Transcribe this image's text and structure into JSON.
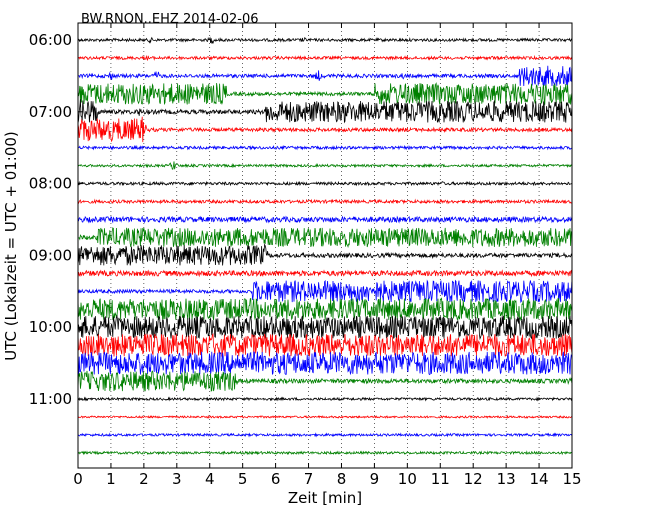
{
  "chart_data": {
    "type": "line",
    "title": "BW.RNON..EHZ 2014-02-06",
    "xlabel": "Zeit  [min]",
    "ylabel": "UTC (Lokalzeit = UTC + 01:00)",
    "xlim": [
      0,
      15
    ],
    "x_ticks": [
      "0",
      "1",
      "2",
      "3",
      "4",
      "5",
      "6",
      "7",
      "8",
      "9",
      "10",
      "11",
      "12",
      "13",
      "14",
      "15"
    ],
    "y_ticks": [
      "06:00",
      "07:00",
      "08:00",
      "09:00",
      "10:00",
      "11:00"
    ],
    "grid": "vertical dotted",
    "colors": [
      "#000000",
      "#ff0000",
      "#0000ff",
      "#008000"
    ],
    "rows": [
      {
        "start": "06:00",
        "segments": [
          {
            "from": 0,
            "to": 15,
            "amp": 0.12
          }
        ],
        "events": [
          {
            "at": 2.2,
            "amp": 0.25
          },
          {
            "at": 4.05,
            "amp": 0.35
          },
          {
            "at": 6.85,
            "amp": 0.25
          }
        ]
      },
      {
        "start": "06:15",
        "segments": [
          {
            "from": 0,
            "to": 15,
            "amp": 0.12
          }
        ],
        "events": [
          {
            "at": 2.15,
            "amp": 0.25
          },
          {
            "at": 12.6,
            "amp": 0.2
          }
        ]
      },
      {
        "start": "06:30",
        "segments": [
          {
            "from": 0,
            "to": 13.4,
            "amp": 0.15
          },
          {
            "from": 13.4,
            "to": 15,
            "amp": 0.85
          }
        ],
        "events": [
          {
            "at": 1.0,
            "amp": 0.4
          },
          {
            "at": 2.4,
            "amp": 0.45
          },
          {
            "at": 7.3,
            "amp": 0.5
          },
          {
            "at": 9.85,
            "amp": 0.3
          }
        ]
      },
      {
        "start": "06:45",
        "segments": [
          {
            "from": 0,
            "to": 4.5,
            "amp": 0.9
          },
          {
            "from": 4.5,
            "to": 9.0,
            "amp": 0.15
          },
          {
            "from": 9.0,
            "to": 15,
            "amp": 0.9
          }
        ],
        "events": []
      },
      {
        "start": "07:00",
        "segments": [
          {
            "from": 0,
            "to": 0.6,
            "amp": 1.05
          },
          {
            "from": 0.6,
            "to": 5.7,
            "amp": 0.18
          },
          {
            "from": 5.7,
            "to": 15,
            "amp": 0.9
          }
        ],
        "events": [
          {
            "at": 1.85,
            "amp": 0.4
          }
        ]
      },
      {
        "start": "07:15",
        "segments": [
          {
            "from": 0,
            "to": 1.9,
            "amp": 0.95
          },
          {
            "from": 1.9,
            "to": 15,
            "amp": 0.15
          }
        ],
        "events": [
          {
            "at": 1.95,
            "amp": 1.2
          }
        ]
      },
      {
        "start": "07:30",
        "segments": [
          {
            "from": 0,
            "to": 15,
            "amp": 0.12
          }
        ],
        "events": []
      },
      {
        "start": "07:45",
        "segments": [
          {
            "from": 0,
            "to": 15,
            "amp": 0.1
          }
        ],
        "events": [
          {
            "at": 2.9,
            "amp": 0.5
          }
        ]
      },
      {
        "start": "08:00",
        "segments": [
          {
            "from": 0,
            "to": 15,
            "amp": 0.12
          }
        ],
        "events": [
          {
            "at": 11.05,
            "amp": 0.2
          }
        ]
      },
      {
        "start": "08:15",
        "segments": [
          {
            "from": 0,
            "to": 15,
            "amp": 0.13
          }
        ],
        "events": []
      },
      {
        "start": "08:30",
        "segments": [
          {
            "from": 0,
            "to": 15,
            "amp": 0.22
          }
        ],
        "events": []
      },
      {
        "start": "08:45",
        "segments": [
          {
            "from": 0,
            "to": 0.6,
            "amp": 0.2
          },
          {
            "from": 0.6,
            "to": 15,
            "amp": 0.8
          }
        ],
        "events": []
      },
      {
        "start": "09:00",
        "segments": [
          {
            "from": 0,
            "to": 5.7,
            "amp": 0.85
          },
          {
            "from": 5.7,
            "to": 15,
            "amp": 0.18
          }
        ],
        "events": [
          {
            "at": 5.65,
            "amp": 1.0
          }
        ]
      },
      {
        "start": "09:15",
        "segments": [
          {
            "from": 0,
            "to": 15,
            "amp": 0.22
          }
        ],
        "events": []
      },
      {
        "start": "09:30",
        "segments": [
          {
            "from": 0,
            "to": 5.3,
            "amp": 0.15
          },
          {
            "from": 5.3,
            "to": 15,
            "amp": 0.9
          }
        ],
        "events": []
      },
      {
        "start": "09:45",
        "segments": [
          {
            "from": 0,
            "to": 15,
            "amp": 0.9
          }
        ],
        "events": []
      },
      {
        "start": "10:00",
        "segments": [
          {
            "from": 0,
            "to": 15,
            "amp": 0.95
          }
        ],
        "events": []
      },
      {
        "start": "10:15",
        "segments": [
          {
            "from": 0,
            "to": 15,
            "amp": 0.95
          }
        ],
        "events": []
      },
      {
        "start": "10:30",
        "segments": [
          {
            "from": 0,
            "to": 15,
            "amp": 0.95
          }
        ],
        "events": []
      },
      {
        "start": "10:45",
        "segments": [
          {
            "from": 0,
            "to": 4.8,
            "amp": 0.85
          },
          {
            "from": 4.8,
            "to": 15,
            "amp": 0.18
          }
        ],
        "events": [
          {
            "at": 4.7,
            "amp": 1.1
          },
          {
            "at": 14.9,
            "amp": 0.3
          }
        ]
      },
      {
        "start": "11:00",
        "segments": [
          {
            "from": 0,
            "to": 15,
            "amp": 0.1
          }
        ],
        "events": []
      },
      {
        "start": "11:15",
        "segments": [
          {
            "from": 0,
            "to": 15,
            "amp": 0.08
          }
        ],
        "events": []
      },
      {
        "start": "11:30",
        "segments": [
          {
            "from": 0,
            "to": 15,
            "amp": 0.1
          }
        ],
        "events": []
      },
      {
        "start": "11:45",
        "segments": [
          {
            "from": 0,
            "to": 15,
            "amp": 0.1
          }
        ],
        "events": []
      }
    ]
  }
}
